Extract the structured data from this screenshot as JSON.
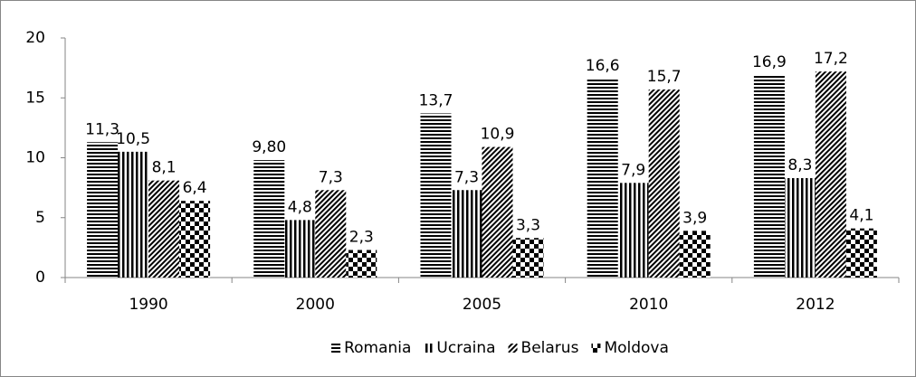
{
  "chart_data": {
    "type": "bar",
    "categories": [
      "1990",
      "2000",
      "2005",
      "2010",
      "2012"
    ],
    "series": [
      {
        "name": "Romania",
        "pattern": "horizontal",
        "color": "#000000",
        "values": [
          11.3,
          9.8,
          13.7,
          16.6,
          16.9
        ],
        "value_labels": [
          "11,3",
          "9,80",
          "13,7",
          "16,6",
          "16,9"
        ]
      },
      {
        "name": "Ucraina",
        "pattern": "vertical",
        "color": "#000000",
        "values": [
          10.5,
          4.8,
          7.3,
          7.9,
          8.3
        ],
        "value_labels": [
          "10,5",
          "4,8",
          "7,3",
          "7,9",
          "8,3"
        ]
      },
      {
        "name": "Belarus",
        "pattern": "diagonal",
        "color": "#000000",
        "values": [
          8.1,
          7.3,
          10.9,
          15.7,
          17.2
        ],
        "value_labels": [
          "8,1",
          "7,3",
          "10,9",
          "15,7",
          "17,2"
        ]
      },
      {
        "name": "Moldova",
        "pattern": "checker",
        "color": "#000000",
        "values": [
          6.4,
          2.3,
          3.3,
          3.9,
          4.1
        ],
        "value_labels": [
          "6,4",
          "2,3",
          "3,3",
          "3,9",
          "4,1"
        ]
      }
    ],
    "ylim": [
      0,
      20
    ],
    "yticks": [
      0,
      5,
      10,
      15,
      20
    ],
    "legend": "bottom"
  }
}
